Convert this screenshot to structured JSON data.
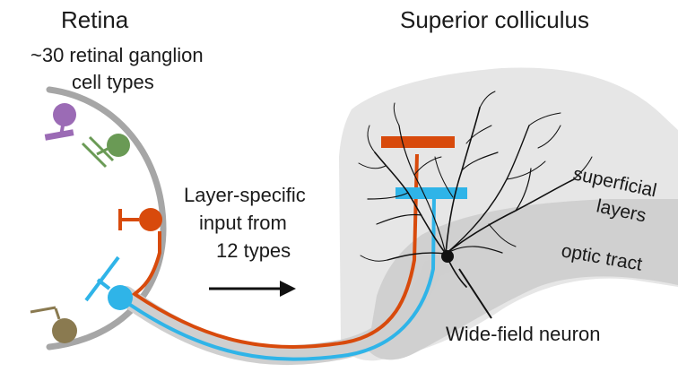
{
  "labels": {
    "retina_title": "Retina",
    "sc_title": "Superior colliculus",
    "rgc_line1": "~30 retinal ganglion",
    "rgc_line2": "cell types",
    "input_line1": "Layer-specific",
    "input_line2": "input from",
    "input_line3": "12 types",
    "superficial_line1": "superficial",
    "superficial_line2": "layers",
    "optic_tract": "optic tract",
    "wide_field": "Wide-field neuron"
  },
  "colors": {
    "retina_gray": "#a6a6a6",
    "sc_light": "#e6e6e6",
    "sc_dark": "#d0d0d0",
    "bundle_gray": "#cfcfcf",
    "purple": "#9b6bb5",
    "green": "#6a9a55",
    "orange": "#d84a0c",
    "blue": "#2fb4e8",
    "olive": "#8a7a50",
    "neuron": "#111111"
  },
  "icons": {
    "arrow": "right-arrow-icon",
    "neuron": "wide-field-neuron-icon"
  }
}
